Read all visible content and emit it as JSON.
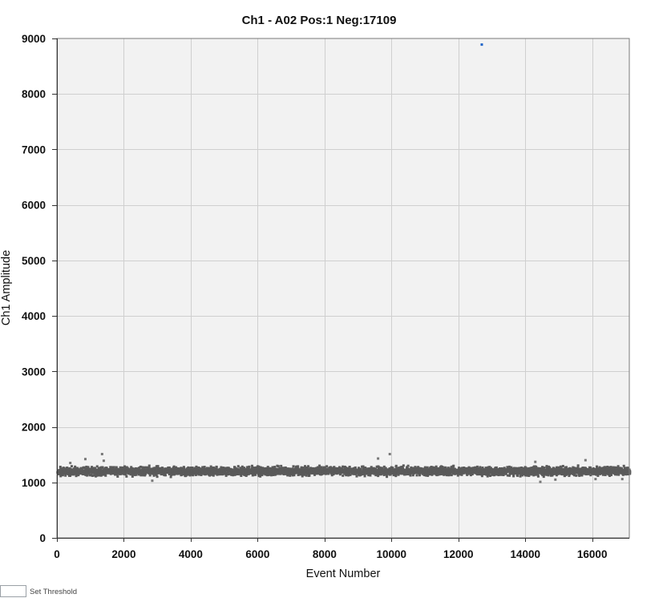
{
  "chart_data": {
    "type": "scatter",
    "title": "Ch1 - A02 Pos:1 Neg:17109",
    "xlabel": "Event Number",
    "ylabel": "Ch1 Amplitude",
    "xlim": [
      0,
      17110
    ],
    "ylim": [
      0,
      9000
    ],
    "xticks": [
      0,
      2000,
      4000,
      6000,
      8000,
      10000,
      12000,
      14000,
      16000
    ],
    "yticks": [
      0,
      1000,
      2000,
      3000,
      4000,
      5000,
      6000,
      7000,
      8000,
      9000
    ],
    "grid": true,
    "series": [
      {
        "name": "Positive",
        "color": "#1e64c8",
        "points": [
          [
            12700,
            8890
          ]
        ]
      },
      {
        "name": "Negative",
        "color": "#5a5a5a",
        "count": 17109,
        "amplitude_band": [
          1100,
          1320
        ],
        "amplitude_center": 1200,
        "outliers": [
          [
            400,
            1350
          ],
          [
            850,
            1420
          ],
          [
            1350,
            1510
          ],
          [
            1400,
            1390
          ],
          [
            2850,
            1030
          ],
          [
            9600,
            1430
          ],
          [
            9950,
            1510
          ],
          [
            14300,
            1370
          ],
          [
            14450,
            1010
          ],
          [
            14900,
            1050
          ],
          [
            15800,
            1400
          ],
          [
            16100,
            1060
          ],
          [
            16900,
            1060
          ]
        ]
      }
    ]
  },
  "controls": {
    "threshold_label": "Set Threshold",
    "threshold_value": ""
  }
}
